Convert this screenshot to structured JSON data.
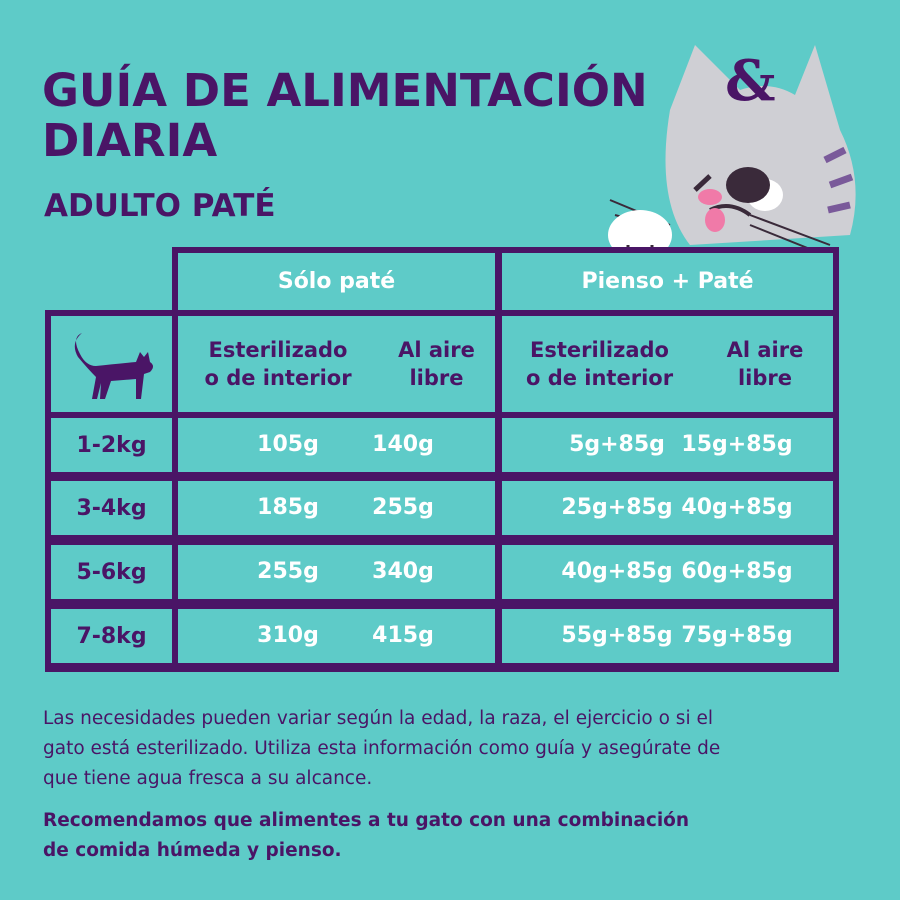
{
  "title": [
    "GUÍA DE ALIMENTACIÓN",
    "DIARIA"
  ],
  "subtitle": "ADULTO PATÉ",
  "colors": {
    "background": "#5ecbc8",
    "primary": "#4a1566",
    "value_text": "#ffffff"
  },
  "table": {
    "groups": [
      "Sólo paté",
      "Pienso + Paté"
    ],
    "subheaders": [
      [
        "Esterilizado",
        "o de interior"
      ],
      [
        "Al aire",
        "libre"
      ],
      [
        "Esterilizado",
        "o de interior"
      ],
      [
        "Al aire",
        "libre"
      ]
    ],
    "icon": "cat-silhouette-icon",
    "rows": [
      {
        "weight": "1-2kg",
        "values": [
          "105g",
          "140g",
          "5g+85g",
          "15g+85g"
        ]
      },
      {
        "weight": "3-4kg",
        "values": [
          "185g",
          "255g",
          "25g+85g",
          "40g+85g"
        ]
      },
      {
        "weight": "5-6kg",
        "values": [
          "255g",
          "340g",
          "40g+85g",
          "60g+85g"
        ]
      },
      {
        "weight": "7-8kg",
        "values": [
          "310g",
          "415g",
          "55g+85g",
          "75g+85g"
        ]
      }
    ]
  },
  "notes": {
    "p1": [
      "Las necesidades pueden variar según la edad, la raza, el ejercicio o si el",
      "gato está esterilizado. Utiliza esta información como guía y asegúrate de",
      "que tiene agua fresca a su alcance."
    ],
    "p2": [
      "Recomendamos que alimentes a tu gato con una combinación",
      "de comida húmeda y pienso."
    ]
  },
  "mascot_letter": "&"
}
